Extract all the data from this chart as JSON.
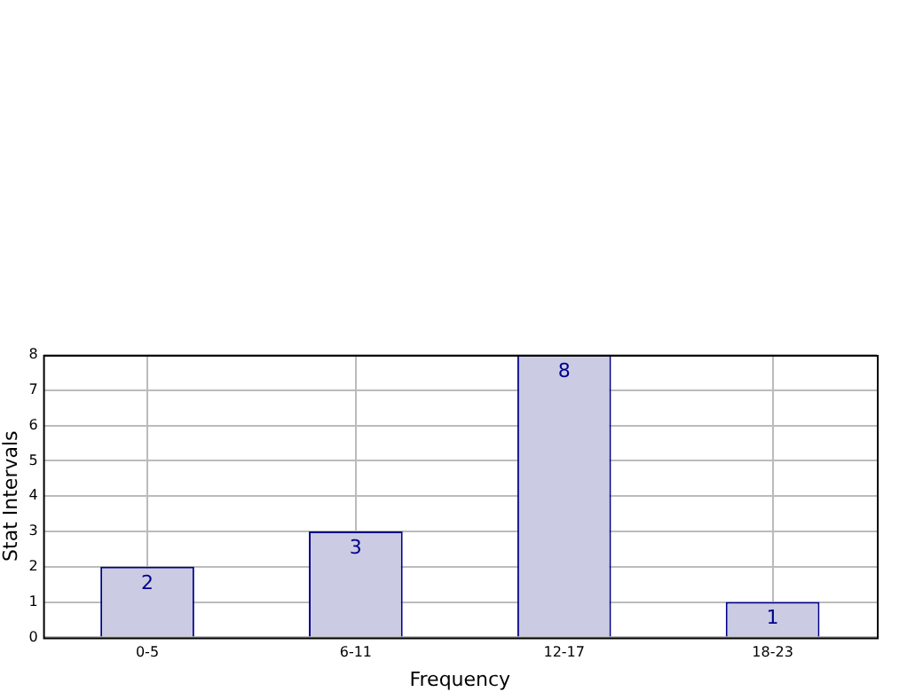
{
  "chart_data": {
    "type": "bar",
    "categories": [
      "0-5",
      "6-11",
      "12-17",
      "18-23"
    ],
    "values": [
      2,
      3,
      8,
      1
    ],
    "color": "#cbcbe3",
    "xlabel": "Frequency",
    "ylabel": "Stat Intervals",
    "ylim": [
      0,
      8
    ],
    "yticks": [
      0,
      1,
      2,
      3,
      4,
      5,
      6,
      7,
      8
    ],
    "grid": true,
    "data_labels": true,
    "legend": false
  }
}
